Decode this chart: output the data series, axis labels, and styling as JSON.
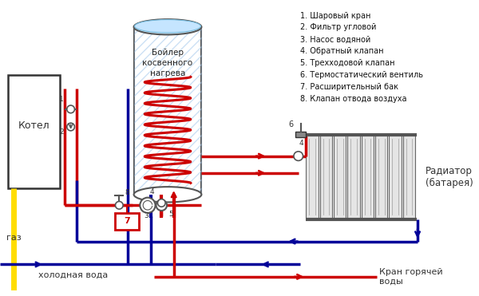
{
  "bg_color": "#ffffff",
  "legend_items": [
    "1. Шаровый кран",
    "2. Фильтр угловой",
    "3. Насос водяной",
    "4. Обратный клапан",
    "5. Трехходовой клапан",
    "6. Термостатический вентиль",
    "7. Расширительный бак",
    "8. Клапан отвода воздуха"
  ],
  "label_kotel": "Котел",
  "label_boiler": "Бойлер\nкосвенного\nнагрева",
  "label_gaz": "газ",
  "label_cold": "холодная вода",
  "label_hot": "Кран горячей\nводы",
  "label_radiator": "Радиатор\n(батарея)"
}
